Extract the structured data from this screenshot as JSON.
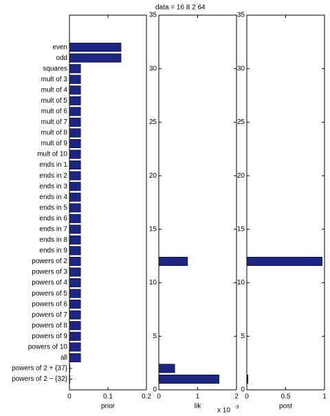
{
  "chart_data": [
    {
      "type": "barh",
      "xlabel": "prior",
      "categories": [
        "even",
        "odd",
        "squares",
        "mult of 3",
        "mult of 4",
        "mult of 5",
        "mult of 6",
        "mult of 7",
        "mult of 8",
        "mult of 9",
        "mult of 10",
        "ends in 1",
        "ends in 2",
        "ends in 3",
        "ends in 4",
        "ends in 5",
        "ends in 6",
        "ends in 7",
        "ends in 8",
        "ends in 9",
        "powers of 2",
        "powers of 3",
        "powers of 4",
        "powers of 5",
        "powers of 6",
        "powers of 7",
        "powers of 8",
        "powers of 9",
        "powers of 10",
        "all",
        "powers of 2 + {37}",
        "powers of 2 − {32}"
      ],
      "values": [
        0.134,
        0.134,
        0.029,
        0.029,
        0.029,
        0.029,
        0.029,
        0.029,
        0.029,
        0.029,
        0.029,
        0.029,
        0.029,
        0.029,
        0.029,
        0.029,
        0.029,
        0.029,
        0.029,
        0.029,
        0.029,
        0.029,
        0.029,
        0.029,
        0.029,
        0.029,
        0.029,
        0.029,
        0.029,
        0.029,
        0.001,
        0.001
      ],
      "xlim": [
        0,
        0.2
      ],
      "xticks": [
        0,
        0.1,
        0.2
      ],
      "ylim": [
        0,
        35
      ],
      "color": "#1c2680"
    },
    {
      "type": "barh",
      "title": "data = 16   8   2  64",
      "xlabel": "lik",
      "multiplier": {
        "base": "x 10",
        "exponent": "-3"
      },
      "y": [
        12,
        2,
        1
      ],
      "values": [
        0.74,
        0.41,
        1.55
      ],
      "xlim": [
        0,
        2
      ],
      "xticks": [
        0,
        1,
        2
      ],
      "ylim": [
        0,
        35
      ],
      "yticks": [
        0,
        5,
        10,
        15,
        20,
        25,
        30,
        35
      ],
      "color": "#1c2680"
    },
    {
      "type": "barh",
      "xlabel": "post",
      "y": [
        12,
        1
      ],
      "values": [
        0.97,
        0.015
      ],
      "xlim": [
        0,
        1
      ],
      "xticks": [
        0,
        0.5,
        1
      ],
      "ylim": [
        0,
        35
      ],
      "yticks": [
        0,
        5,
        10,
        15,
        20,
        25,
        30,
        35
      ],
      "color": "#1c2680"
    }
  ]
}
